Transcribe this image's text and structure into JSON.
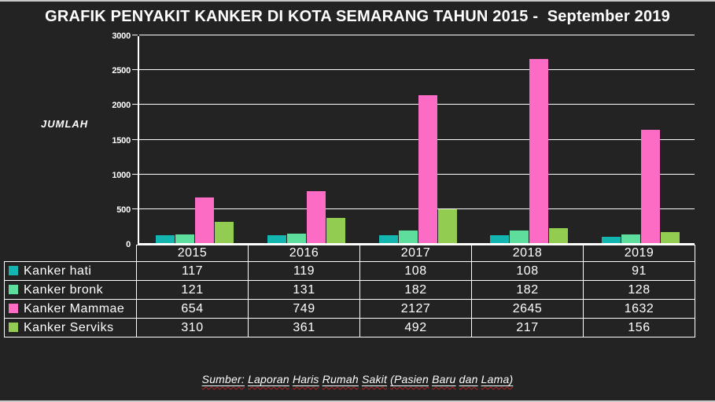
{
  "slide": {
    "title": "GRAFIK PENYAKIT KANKER DI KOTA SEMARANG TAHUN 2015 -  September 2019",
    "source_note": "Sumber: Laporan Haris Rumah Sakit (Pasien Baru dan Lama)"
  },
  "chart_data": {
    "type": "bar",
    "title": "GRAFIK PENYAKIT KANKER DI KOTA SEMARANG TAHUN 2015 -  September 2019",
    "xlabel": "",
    "ylabel": "JUMLAH",
    "categories": [
      "2015",
      "2016",
      "2017",
      "2018",
      "2019"
    ],
    "series": [
      {
        "name": "Kanker hati",
        "color": "#12b5b0",
        "values": [
          117,
          119,
          108,
          108,
          91
        ]
      },
      {
        "name": "Kanker bronk",
        "color": "#5ede9d",
        "values": [
          121,
          131,
          182,
          182,
          128
        ]
      },
      {
        "name": "Kanker Mammae",
        "color": "#fc6cc5",
        "values": [
          654,
          749,
          2127,
          2645,
          1632
        ]
      },
      {
        "name": "Kanker Serviks",
        "color": "#92cc50",
        "values": [
          310,
          361,
          492,
          217,
          156
        ]
      }
    ],
    "ylim": [
      0,
      3000
    ],
    "ytick_step": 500,
    "grid": true,
    "legend_position": "table-left",
    "data_table_shown": true
  },
  "colors": {
    "background": "#232323",
    "gridline": "#ffffff",
    "text": "#ffffff",
    "edge_line": "#c9c9c9",
    "spellcheck_squiggle": "#b82222"
  }
}
